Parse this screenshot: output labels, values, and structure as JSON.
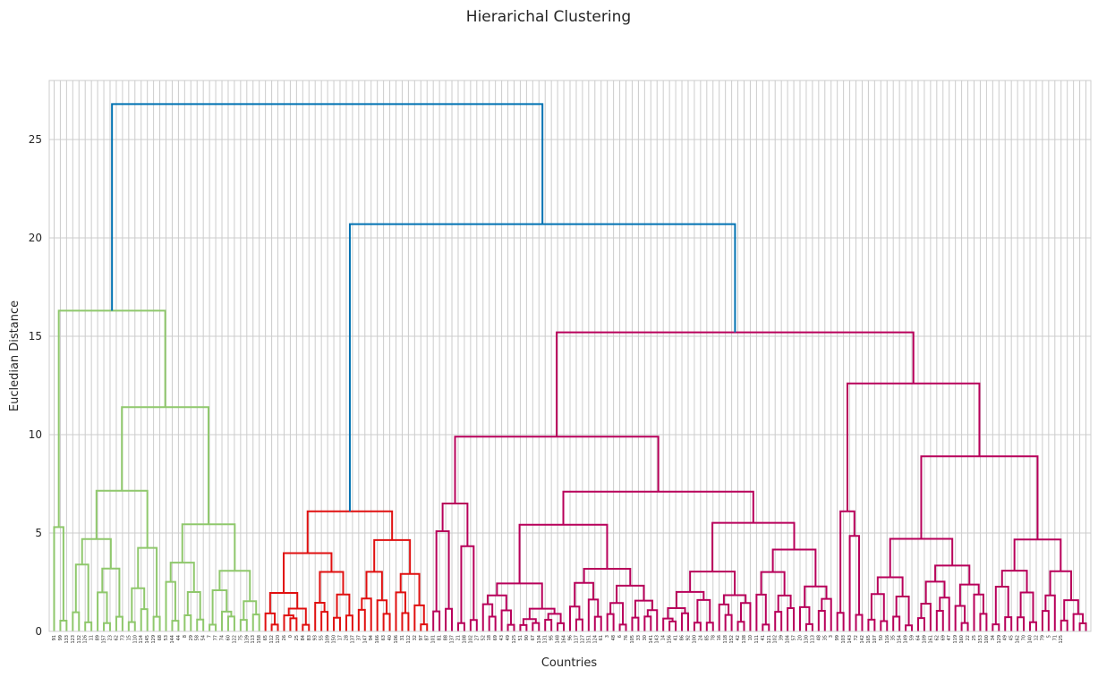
{
  "figure": {
    "title": "Hierarichal Clustering"
  },
  "chart_data": {
    "type": "dendrogram",
    "title": "Hierarichal Clustering",
    "xlabel": "Countries",
    "ylabel": "Eucledian Distance",
    "ylim": [
      0,
      28
    ],
    "yticks": [
      0,
      5,
      10,
      15,
      20,
      25
    ],
    "grid": true,
    "leaf_count": 167,
    "leaf_labels": [
      "91",
      "99",
      "133",
      "123",
      "132",
      "126",
      "11",
      "89",
      "157",
      "23",
      "62",
      "73",
      "15",
      "110",
      "114",
      "145",
      "129",
      "68",
      "53",
      "144",
      "44",
      "8",
      "29",
      "58",
      "54",
      "7",
      "77",
      "74",
      "60",
      "122",
      "75",
      "139",
      "113",
      "158",
      "65",
      "112",
      "120",
      "26",
      "0",
      "25",
      "84",
      "83",
      "93",
      "55",
      "109",
      "150",
      "17",
      "28",
      "137",
      "37",
      "147",
      "94",
      "166",
      "63",
      "40",
      "106",
      "31",
      "112",
      "32",
      "97",
      "87",
      "101",
      "81",
      "88",
      "137",
      "21",
      "108",
      "102",
      "27",
      "52",
      "18",
      "69",
      "43",
      "49",
      "125",
      "51",
      "90",
      "67",
      "134",
      "131",
      "95",
      "148",
      "164",
      "96",
      "117",
      "127",
      "151",
      "124",
      "61",
      "3",
      "48",
      "6",
      "76",
      "105",
      "33",
      "30",
      "141",
      "143",
      "14",
      "156",
      "41",
      "86",
      "92",
      "100",
      "24",
      "85",
      "78",
      "16",
      "118",
      "152",
      "42",
      "138",
      "10",
      "111",
      "41",
      "121",
      "102",
      "39",
      "104",
      "57",
      "20",
      "130",
      "113",
      "48",
      "35",
      "3",
      "99",
      "103",
      "143",
      "72",
      "142",
      "165",
      "107",
      "50",
      "116",
      "35",
      "154",
      "149",
      "59",
      "64",
      "109",
      "161",
      "62",
      "69",
      "47",
      "119",
      "160",
      "22",
      "25",
      "153",
      "100",
      "34",
      "129",
      "49",
      "45",
      "162",
      "70",
      "140",
      "12",
      "79",
      "5",
      "71",
      "125"
    ],
    "clusters": [
      {
        "name": "",
        "color": "#8fc86c",
        "leaf_range": [
          0,
          33
        ]
      },
      {
        "name": "",
        "color": "#e01010",
        "leaf_range": [
          34,
          60
        ]
      },
      {
        "name": "",
        "color": "#b8005a",
        "leaf_range": [
          61,
          166
        ]
      }
    ],
    "links": [
      {
        "color": "#0072b2",
        "left": 16.3,
        "right": 20.7,
        "height": 26.8
      },
      {
        "color": "#0072b2",
        "left": 6.1,
        "right": 15.2,
        "height": 20.7
      },
      {
        "color": "#8fc86c",
        "left": 5.3,
        "right": 11.4,
        "height": 16.3
      },
      {
        "color": "#8fc86c",
        "left": 6.1,
        "right": 6.3,
        "height": 11.4
      },
      {
        "color": "#b8005a",
        "left": 9.9,
        "right": 12.6,
        "height": 15.2
      },
      {
        "color": "#b8005a",
        "left": 6.5,
        "right": 7.1,
        "height": 9.9
      },
      {
        "color": "#b8005a",
        "left": 6.1,
        "right": 8.9,
        "height": 12.6
      },
      {
        "color": "#b8005a",
        "left": 4.9,
        "right": 6.7,
        "height": 8.9
      },
      {
        "color": "#e01010",
        "left": 3.2,
        "right": 5.3,
        "height": 6.1
      }
    ]
  }
}
